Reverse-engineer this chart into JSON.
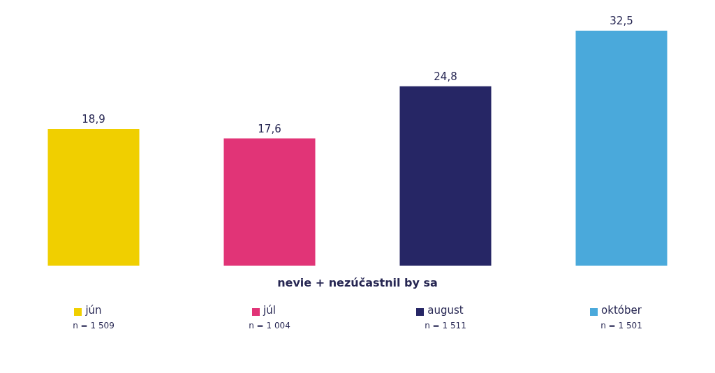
{
  "chart_data": {
    "type": "bar",
    "xlabel": "nevie + nezúčastnil by sa",
    "categories": [
      "jún",
      "júl",
      "august",
      "október"
    ],
    "values": [
      18.9,
      17.6,
      24.8,
      32.5
    ],
    "value_labels": [
      "18,9",
      "17,6",
      "24,8",
      "32,5"
    ],
    "colors": [
      "#f0cf00",
      "#e13477",
      "#262665",
      "#4aa9db"
    ],
    "grid": false,
    "annotations": [
      "n = 1 509",
      "n = 1 004",
      "n = 1 511",
      "n = 1 501"
    ]
  }
}
